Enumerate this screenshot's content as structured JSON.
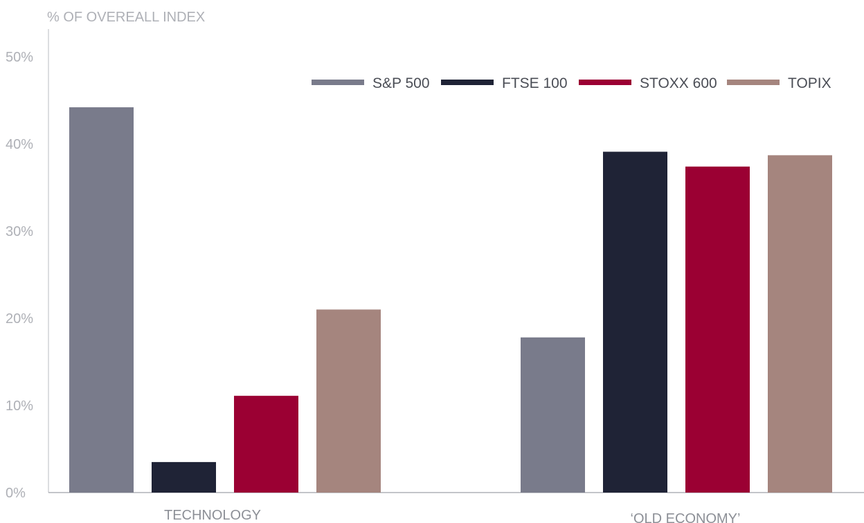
{
  "chart_data": {
    "type": "bar",
    "ylabel": "% OF OVEREALL INDEX",
    "ylim": [
      0,
      50
    ],
    "yticks": [
      0,
      10,
      20,
      30,
      40,
      50
    ],
    "ytick_labels": [
      "0%",
      "10%",
      "20%",
      "30%",
      "40%",
      "50%"
    ],
    "categories": [
      "TECHNOLOGY",
      "‘OLD ECONOMY’"
    ],
    "series": [
      {
        "name": "S&P 500",
        "color": "#797b8b",
        "values": [
          44.2,
          17.8
        ]
      },
      {
        "name": "FTSE 100",
        "color": "#1f2336",
        "values": [
          3.5,
          39.1
        ]
      },
      {
        "name": "STOXX 600",
        "color": "#9b0033",
        "values": [
          11.1,
          37.4
        ]
      },
      {
        "name": "TOPIX",
        "color": "#a5857e",
        "values": [
          21.0,
          38.7
        ]
      }
    ],
    "legend_position": "top-right",
    "grid": false
  }
}
